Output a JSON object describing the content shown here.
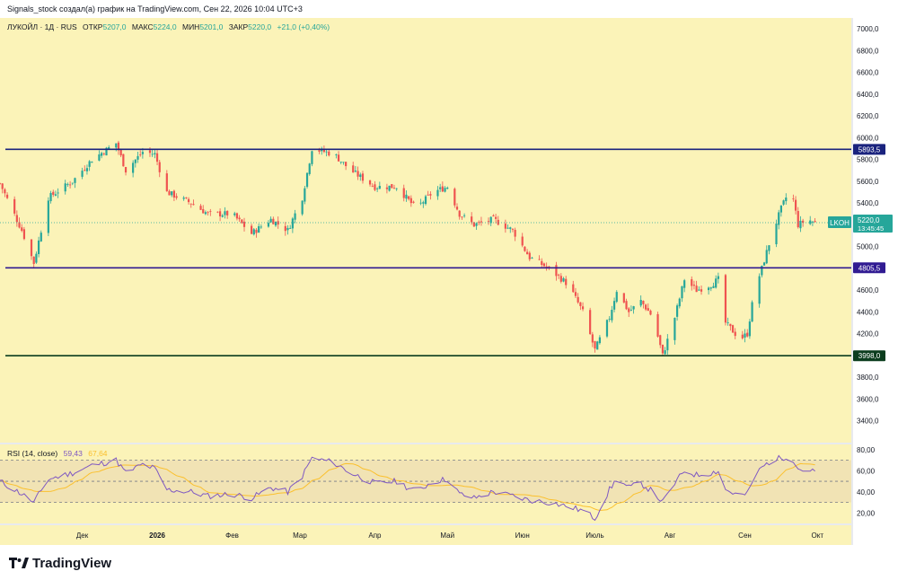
{
  "header": {
    "published": "Signals_stock создал(а) график на TradingView.com, Сен 22, 2026 10:04 UTC+3"
  },
  "legend": {
    "symbol": "ЛУКОЙЛ · 1Д · RUS",
    "open_label": "ОТКР",
    "open_value": "5207,0",
    "high_label": "МАКС",
    "high_value": "5224,0",
    "low_label": "МИН",
    "low_value": "5201,0",
    "close_label": "ЗАКР",
    "close_value": "5220,0",
    "change": "+21,0 (+0,40%)"
  },
  "price_tag": {
    "ticker": "LKOH",
    "price": "5220,0",
    "countdown": "13:45:45"
  },
  "rsi_legend": {
    "name": "RSI (14, close)",
    "value": "59,43",
    "ma_value": "67,64"
  },
  "logo": {
    "text": "TradingView"
  },
  "colors": {
    "background": "#fbf3b8",
    "rsi_band": "#f1e3b4",
    "up": "#26a69a",
    "down": "#ef5350",
    "level_1": "#1a237e",
    "level_2": "#311b92",
    "level_3": "#0b3d1e",
    "rsi_line": "#7e57c2",
    "rsi_ma": "#fbc02d",
    "price_tag": "#26a69a"
  },
  "chart_data": {
    "type": "candlestick",
    "title": "",
    "y_axis": {
      "min": 3200,
      "max": 7100,
      "ticks": [
        3400,
        3600,
        3800,
        4000,
        4200,
        4400,
        4600,
        4800,
        5000,
        5200,
        5400,
        5600,
        5800,
        6000,
        6200,
        6400,
        6600,
        6800,
        7000
      ],
      "tick_labels": [
        "3400,0",
        "3600,0",
        "3800,0",
        "4000,0",
        "4200,0",
        "4400,0",
        "4600,0",
        "4800,0",
        "5000,0",
        "5200,0",
        "5400,0",
        "5600,0",
        "5800,0",
        "6000,0",
        "6200,0",
        "6400,0",
        "6600,0",
        "6800,0",
        "7000,0"
      ]
    },
    "x_axis": {
      "start": "2025-10-28",
      "end": "2026-10-15",
      "labels": [
        {
          "date": "2025-12-01",
          "label": "Дек"
        },
        {
          "date": "2026-01-01",
          "label": "2026"
        },
        {
          "date": "2026-02-01",
          "label": "Фев"
        },
        {
          "date": "2026-03-01",
          "label": "Мар"
        },
        {
          "date": "2026-04-01",
          "label": "Апр"
        },
        {
          "date": "2026-05-01",
          "label": "Май"
        },
        {
          "date": "2026-06-01",
          "label": "Июн"
        },
        {
          "date": "2026-07-01",
          "label": "Июль"
        },
        {
          "date": "2026-08-01",
          "label": "Авг"
        },
        {
          "date": "2026-09-01",
          "label": "Сен"
        },
        {
          "date": "2026-10-01",
          "label": "Окт"
        }
      ]
    },
    "last_price": 5220,
    "levels": [
      {
        "price": 5893.5,
        "label": "5893,5",
        "color": "#1a237e"
      },
      {
        "price": 4805.5,
        "label": "4805,5",
        "color": "#311b92"
      },
      {
        "price": 3998.0,
        "label": "3998,0",
        "color": "#0b3d1e"
      }
    ],
    "price_path": [
      {
        "date": "2025-10-28",
        "close": 5580
      },
      {
        "date": "2025-11-06",
        "close": 5150
      },
      {
        "date": "2025-11-11",
        "close": 4850
      },
      {
        "date": "2025-11-17",
        "close": 5450
      },
      {
        "date": "2025-11-27",
        "close": 5600
      },
      {
        "date": "2025-12-05",
        "close": 5800
      },
      {
        "date": "2025-12-15",
        "close": 5950
      },
      {
        "date": "2025-12-19",
        "close": 5700
      },
      {
        "date": "2025-12-26",
        "close": 5870
      },
      {
        "date": "2025-12-31",
        "close": 5850
      },
      {
        "date": "2026-01-05",
        "close": 5500
      },
      {
        "date": "2026-01-15",
        "close": 5400
      },
      {
        "date": "2026-01-22",
        "close": 5300
      },
      {
        "date": "2026-02-01",
        "close": 5300
      },
      {
        "date": "2026-02-09",
        "close": 5120
      },
      {
        "date": "2026-02-17",
        "close": 5250
      },
      {
        "date": "2026-02-24",
        "close": 5150
      },
      {
        "date": "2026-03-02",
        "close": 5450
      },
      {
        "date": "2026-03-06",
        "close": 5900
      },
      {
        "date": "2026-03-15",
        "close": 5850
      },
      {
        "date": "2026-03-22",
        "close": 5700
      },
      {
        "date": "2026-04-01",
        "close": 5550
      },
      {
        "date": "2026-04-10",
        "close": 5550
      },
      {
        "date": "2026-04-18",
        "close": 5350
      },
      {
        "date": "2026-04-25",
        "close": 5500
      },
      {
        "date": "2026-05-01",
        "close": 5550
      },
      {
        "date": "2026-05-06",
        "close": 5300
      },
      {
        "date": "2026-05-12",
        "close": 5200
      },
      {
        "date": "2026-05-20",
        "close": 5250
      },
      {
        "date": "2026-05-28",
        "close": 5150
      },
      {
        "date": "2026-06-04",
        "close": 4900
      },
      {
        "date": "2026-06-12",
        "close": 4800
      },
      {
        "date": "2026-06-20",
        "close": 4650
      },
      {
        "date": "2026-06-26",
        "close": 4400
      },
      {
        "date": "2026-07-01",
        "close": 4050
      },
      {
        "date": "2026-07-07",
        "close": 4350
      },
      {
        "date": "2026-07-10",
        "close": 4600
      },
      {
        "date": "2026-07-15",
        "close": 4400
      },
      {
        "date": "2026-07-20",
        "close": 4500
      },
      {
        "date": "2026-07-25",
        "close": 4350
      },
      {
        "date": "2026-07-29",
        "close": 4000
      },
      {
        "date": "2026-08-03",
        "close": 4350
      },
      {
        "date": "2026-08-07",
        "close": 4700
      },
      {
        "date": "2026-08-12",
        "close": 4600
      },
      {
        "date": "2026-08-18",
        "close": 4650
      },
      {
        "date": "2026-08-21",
        "close": 4700
      },
      {
        "date": "2026-08-24",
        "close": 4300
      },
      {
        "date": "2026-08-30",
        "close": 4150
      },
      {
        "date": "2026-09-02",
        "close": 4200
      },
      {
        "date": "2026-09-05",
        "close": 4600
      },
      {
        "date": "2026-09-08",
        "close": 4800
      },
      {
        "date": "2026-09-12",
        "close": 5100
      },
      {
        "date": "2026-09-16",
        "close": 5350
      },
      {
        "date": "2026-09-20",
        "close": 5550
      },
      {
        "date": "2026-09-23",
        "close": 5200
      },
      {
        "date": "2026-09-27",
        "close": 5250
      },
      {
        "date": "2026-09-30",
        "close": 5220
      }
    ],
    "rsi": {
      "y_axis": {
        "min": 10,
        "max": 85,
        "ticks": [
          20,
          40,
          60,
          80
        ],
        "tick_labels": [
          "20,00",
          "40,00",
          "60,00",
          "80,00"
        ]
      },
      "bands": [
        30,
        50,
        70
      ],
      "path": [
        {
          "date": "2025-10-28",
          "value": 50
        },
        {
          "date": "2025-11-06",
          "value": 38
        },
        {
          "date": "2025-11-11",
          "value": 30
        },
        {
          "date": "2025-11-17",
          "value": 52
        },
        {
          "date": "2025-11-27",
          "value": 58
        },
        {
          "date": "2025-12-05",
          "value": 65
        },
        {
          "date": "2025-12-15",
          "value": 70
        },
        {
          "date": "2025-12-19",
          "value": 58
        },
        {
          "date": "2025-12-26",
          "value": 66
        },
        {
          "date": "2025-12-31",
          "value": 62
        },
        {
          "date": "2026-01-05",
          "value": 42
        },
        {
          "date": "2026-01-15",
          "value": 40
        },
        {
          "date": "2026-01-22",
          "value": 36
        },
        {
          "date": "2026-02-01",
          "value": 38
        },
        {
          "date": "2026-02-09",
          "value": 34
        },
        {
          "date": "2026-02-17",
          "value": 44
        },
        {
          "date": "2026-02-24",
          "value": 40
        },
        {
          "date": "2026-03-02",
          "value": 55
        },
        {
          "date": "2026-03-06",
          "value": 72
        },
        {
          "date": "2026-03-15",
          "value": 68
        },
        {
          "date": "2026-03-22",
          "value": 58
        },
        {
          "date": "2026-04-01",
          "value": 48
        },
        {
          "date": "2026-04-10",
          "value": 50
        },
        {
          "date": "2026-04-18",
          "value": 40
        },
        {
          "date": "2026-04-25",
          "value": 50
        },
        {
          "date": "2026-05-01",
          "value": 52
        },
        {
          "date": "2026-05-06",
          "value": 38
        },
        {
          "date": "2026-05-12",
          "value": 34
        },
        {
          "date": "2026-05-20",
          "value": 40
        },
        {
          "date": "2026-05-28",
          "value": 36
        },
        {
          "date": "2026-06-04",
          "value": 32
        },
        {
          "date": "2026-06-12",
          "value": 30
        },
        {
          "date": "2026-06-20",
          "value": 26
        },
        {
          "date": "2026-06-26",
          "value": 22
        },
        {
          "date": "2026-07-01",
          "value": 15
        },
        {
          "date": "2026-07-07",
          "value": 42
        },
        {
          "date": "2026-07-10",
          "value": 52
        },
        {
          "date": "2026-07-15",
          "value": 44
        },
        {
          "date": "2026-07-20",
          "value": 48
        },
        {
          "date": "2026-07-25",
          "value": 40
        },
        {
          "date": "2026-07-29",
          "value": 30
        },
        {
          "date": "2026-08-03",
          "value": 48
        },
        {
          "date": "2026-08-07",
          "value": 60
        },
        {
          "date": "2026-08-12",
          "value": 56
        },
        {
          "date": "2026-08-18",
          "value": 58
        },
        {
          "date": "2026-08-21",
          "value": 60
        },
        {
          "date": "2026-08-24",
          "value": 42
        },
        {
          "date": "2026-08-30",
          "value": 36
        },
        {
          "date": "2026-09-02",
          "value": 38
        },
        {
          "date": "2026-09-05",
          "value": 55
        },
        {
          "date": "2026-09-08",
          "value": 63
        },
        {
          "date": "2026-09-12",
          "value": 70
        },
        {
          "date": "2026-09-16",
          "value": 72
        },
        {
          "date": "2026-09-20",
          "value": 75
        },
        {
          "date": "2026-09-23",
          "value": 62
        },
        {
          "date": "2026-09-27",
          "value": 60
        },
        {
          "date": "2026-09-30",
          "value": 59
        }
      ]
    }
  }
}
